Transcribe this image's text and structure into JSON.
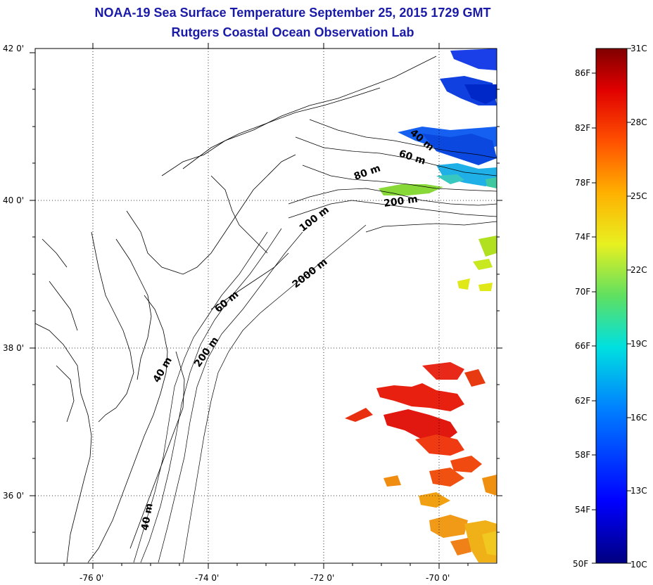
{
  "title": "NOAA-19 Sea Surface Temperature September 25, 2015 1729 GMT",
  "subtitle": "Rutgers Coastal Ocean Observation Lab",
  "lat_labels": [
    "42 0'",
    "40 0'",
    "38 0'",
    "36 0'"
  ],
  "lon_labels": [
    "-76 0'",
    "-74 0'",
    "-72 0'",
    "-70 0'"
  ],
  "contour_labels": [
    "40 m",
    "60 m",
    "80 m",
    "200 m",
    "100 m",
    "2000 m",
    "60 m",
    "40 m",
    "200 m",
    "40 m"
  ],
  "colorbar": {
    "f_labels": [
      "86F",
      "82F",
      "78F",
      "74F",
      "70F",
      "66F",
      "62F",
      "58F",
      "54F",
      "50F"
    ],
    "c_labels": [
      "31C",
      "28C",
      "25C",
      "22C",
      "19C",
      "16C",
      "13C",
      "10C"
    ]
  },
  "colors": {
    "title": "#1a1aa8",
    "land_outline": "#000000"
  }
}
